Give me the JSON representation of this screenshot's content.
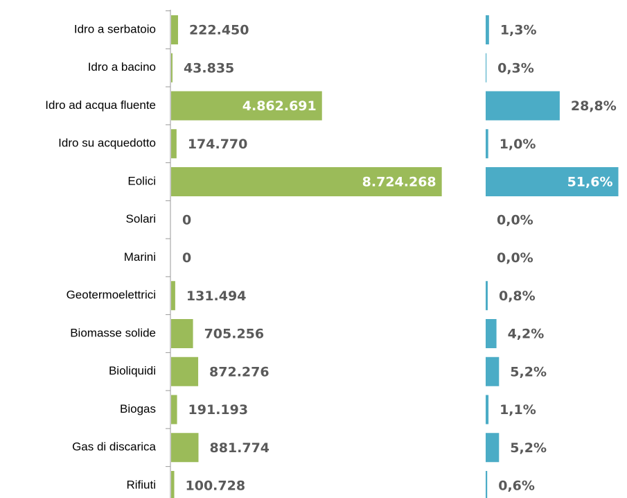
{
  "chart_data": [
    {
      "type": "bar",
      "orientation": "horizontal",
      "categories": [
        "Idro a serbatoio",
        "Idro a bacino",
        "Idro ad acqua fluente",
        "Idro su acquedotto",
        "Eolici",
        "Solari",
        "Marini",
        "Geotermoelettrici",
        "Biomasse solide",
        "Bioliquidi",
        "Biogas",
        "Gas di discarica",
        "Rifiuti"
      ],
      "values": [
        222450,
        43835,
        4862691,
        174770,
        8724268,
        0,
        0,
        131494,
        705256,
        872276,
        191193,
        881774,
        100728
      ],
      "value_labels": [
        "222.450",
        "43.835",
        "4.862.691",
        "174.770",
        "8.724.268",
        "0",
        "0",
        "131.494",
        "705.256",
        "872.276",
        "191.193",
        "881.774",
        "100.728"
      ],
      "color": "#9bbb59",
      "xlim": [
        0,
        9000000
      ]
    },
    {
      "type": "bar",
      "orientation": "horizontal",
      "values": [
        1.3,
        0.3,
        28.8,
        1.0,
        51.6,
        0.0,
        0.0,
        0.8,
        4.2,
        5.2,
        1.1,
        5.2,
        0.6
      ],
      "value_labels": [
        "1,3%",
        "0,3%",
        "28,8%",
        "1,0%",
        "51,6%",
        "0,0%",
        "0,0%",
        "0,8%",
        "4,2%",
        "5,2%",
        "1,1%",
        "5,2%",
        "0,6%"
      ],
      "color": "#4bacc6",
      "xlim": [
        0,
        52
      ]
    }
  ]
}
